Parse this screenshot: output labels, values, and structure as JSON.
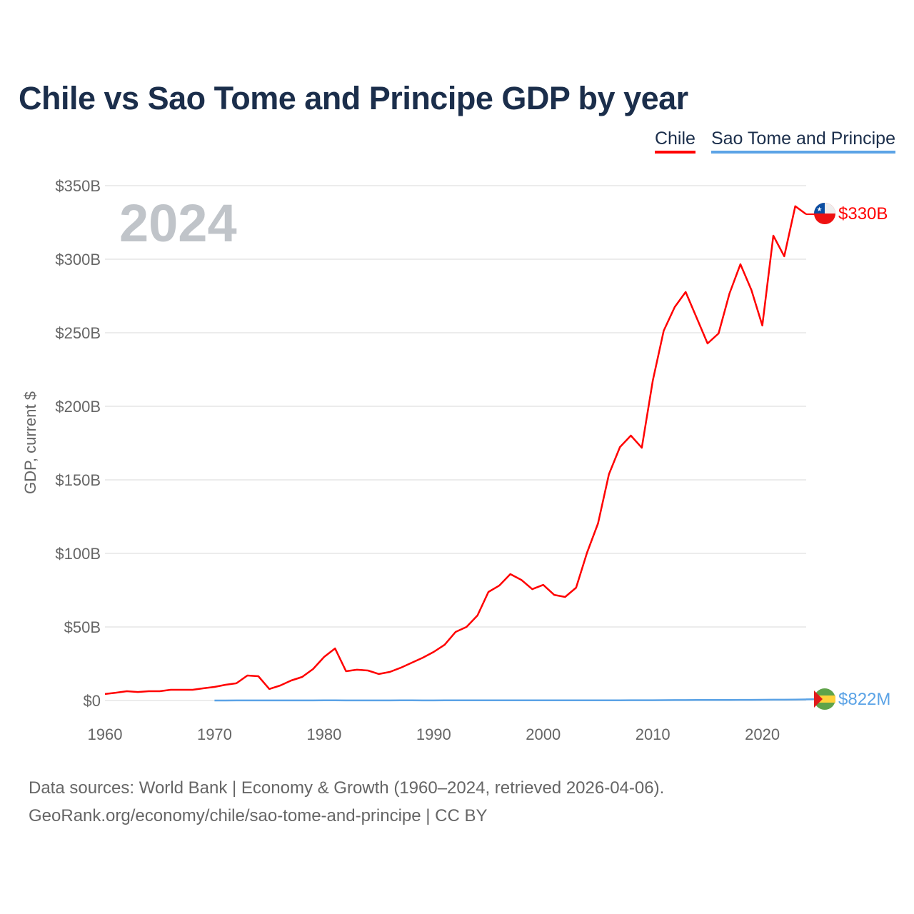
{
  "chart_data": {
    "type": "line",
    "title": "Chile vs Sao Tome and Principe GDP by year",
    "ylabel": "GDP, current $",
    "xlabel": "",
    "xlim": [
      1960,
      2024
    ],
    "ylim": [
      0,
      350
    ],
    "year_label": "2024",
    "grid": true,
    "legend_placement": "top-right",
    "x_ticks": [
      "1960",
      "1970",
      "1980",
      "1990",
      "2000",
      "2010",
      "2020"
    ],
    "y_ticks": [
      {
        "v": 0,
        "label": "$0"
      },
      {
        "v": 50,
        "label": "$50B"
      },
      {
        "v": 100,
        "label": "$100B"
      },
      {
        "v": 150,
        "label": "$150B"
      },
      {
        "v": 200,
        "label": "$200B"
      },
      {
        "v": 250,
        "label": "$250B"
      },
      {
        "v": 300,
        "label": "$300B"
      },
      {
        "v": 350,
        "label": "$350B"
      }
    ],
    "series": [
      {
        "name": "Chile",
        "color": "#ff0000",
        "end_label": "$330B",
        "start_year": 1960,
        "values": [
          4.4,
          5.3,
          6.3,
          5.8,
          6.3,
          6.3,
          7.3,
          7.3,
          7.3,
          8.3,
          9.2,
          10.7,
          11.7,
          17,
          16.5,
          7.8,
          10.2,
          13.6,
          16,
          21.4,
          29.6,
          35.4,
          19.9,
          20.9,
          20.4,
          18,
          19.4,
          22.3,
          25.7,
          29.1,
          33,
          37.9,
          46.6,
          50,
          57.8,
          73.8,
          78.2,
          85.9,
          82,
          75.7,
          78.6,
          71.8,
          70.4,
          76.7,
          100.5,
          120.4,
          153.9,
          172.3,
          180.1,
          171.8,
          217.5,
          251.4,
          267.5,
          277.7,
          260.2,
          242.7,
          249.5,
          276.7,
          296.6,
          279.1,
          254.9,
          316,
          302,
          336,
          330.6
        ]
      },
      {
        "name": "Sao Tome and Principe",
        "color": "#5ba3e6",
        "end_label": "$822M",
        "start_year": 1970,
        "values": [
          0.02,
          0.02,
          0.03,
          0.03,
          0.04,
          0.04,
          0.05,
          0.05,
          0.06,
          0.07,
          0.08,
          0.08,
          0.07,
          0.07,
          0.06,
          0.06,
          0.07,
          0.08,
          0.08,
          0.07,
          0.07,
          0.08,
          0.08,
          0.09,
          0.09,
          0.09,
          0.09,
          0.09,
          0.08,
          0.08,
          0.08,
          0.08,
          0.09,
          0.1,
          0.11,
          0.12,
          0.13,
          0.15,
          0.19,
          0.2,
          0.21,
          0.25,
          0.27,
          0.3,
          0.35,
          0.32,
          0.34,
          0.38,
          0.42,
          0.43,
          0.47,
          0.55,
          0.55,
          0.62,
          0.75,
          0.822
        ]
      }
    ]
  },
  "footer": {
    "line1": "Data sources: World Bank | Economy & Growth (1960–2024, retrieved 2026-04-06).",
    "line2": "GeoRank.org/economy/chile/sao-tome-and-principe | CC BY"
  }
}
